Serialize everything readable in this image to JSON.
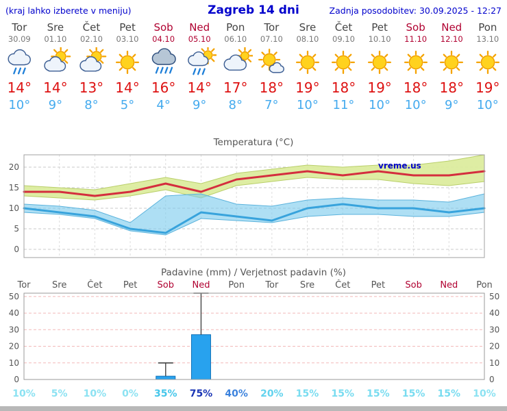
{
  "header": {
    "left_note": "(kraj lahko izberete v meniju)",
    "title": "Zagreb 14 dni",
    "updated": "Zadnja posodobitev: 30.09.2025 - 12:27"
  },
  "colors": {
    "header_blue": "#0000cc",
    "weekend_red": "#b00030",
    "day_gray": "#555555",
    "tmax_red": "#dd1111",
    "tmin_blue": "#44aaee",
    "temp_line_max": "#d42e3e",
    "temp_line_min": "#38a3dc",
    "temp_band_max": "#dcec9e",
    "temp_band_min": "#7cccee",
    "bar_fill": "#28a2ee",
    "bar_stroke": "#1272b8",
    "grid_gray": "#c8c8c8",
    "grid_pink": "#f2b8b8"
  },
  "days": [
    {
      "name": "Tor",
      "date": "30.09",
      "weekend": false,
      "icon": "rain",
      "tmax": "14°",
      "tmin": "10°"
    },
    {
      "name": "Sre",
      "date": "01.10",
      "weekend": false,
      "icon": "partly-cloudy",
      "tmax": "14°",
      "tmin": "9°"
    },
    {
      "name": "Čet",
      "date": "02.10",
      "weekend": false,
      "icon": "partly-cloudy",
      "tmax": "13°",
      "tmin": "8°"
    },
    {
      "name": "Pet",
      "date": "03.10",
      "weekend": false,
      "icon": "sunny",
      "tmax": "14°",
      "tmin": "5°"
    },
    {
      "name": "Sob",
      "date": "04.10",
      "weekend": true,
      "icon": "heavy-rain",
      "tmax": "16°",
      "tmin": "4°"
    },
    {
      "name": "Ned",
      "date": "05.10",
      "weekend": true,
      "icon": "sun-rain",
      "tmax": "14°",
      "tmin": "9°"
    },
    {
      "name": "Pon",
      "date": "06.10",
      "weekend": false,
      "icon": "cloudy",
      "tmax": "17°",
      "tmin": "8°"
    },
    {
      "name": "Tor",
      "date": "07.10",
      "weekend": false,
      "icon": "mostly-sunny",
      "tmax": "18°",
      "tmin": "7°"
    },
    {
      "name": "Sre",
      "date": "08.10",
      "weekend": false,
      "icon": "sunny",
      "tmax": "19°",
      "tmin": "10°"
    },
    {
      "name": "Čet",
      "date": "09.10",
      "weekend": false,
      "icon": "sunny",
      "tmax": "18°",
      "tmin": "11°"
    },
    {
      "name": "Pet",
      "date": "10.10",
      "weekend": false,
      "icon": "sunny",
      "tmax": "19°",
      "tmin": "10°"
    },
    {
      "name": "Sob",
      "date": "11.10",
      "weekend": true,
      "icon": "sunny",
      "tmax": "18°",
      "tmin": "10°"
    },
    {
      "name": "Ned",
      "date": "12.10",
      "weekend": true,
      "icon": "sunny",
      "tmax": "18°",
      "tmin": "9°"
    },
    {
      "name": "Pon",
      "date": "13.10",
      "weekend": false,
      "icon": "sunny",
      "tmax": "19°",
      "tmin": "10°"
    }
  ],
  "chart_data": [
    {
      "type": "line",
      "title": "Temperatura (°C)",
      "watermark": "vreme.us",
      "categories": [
        "Tor 30.09",
        "Sre 01.10",
        "Čet 02.10",
        "Pet 03.10",
        "Sob 04.10",
        "Ned 05.10",
        "Pon 06.10",
        "Tor 07.10",
        "Sre 08.10",
        "Čet 09.10",
        "Pet 10.10",
        "Sob 11.10",
        "Ned 12.10",
        "Pon 13.10"
      ],
      "yticks": [
        0,
        5,
        10,
        15,
        20
      ],
      "ylim": [
        -2,
        23
      ],
      "grid": true,
      "legend_position": "none",
      "series": [
        {
          "name": "tmax",
          "color": "#d42e3e",
          "values": [
            14,
            14,
            13,
            14,
            16,
            14,
            17,
            18,
            19,
            18,
            19,
            18,
            18,
            19
          ]
        },
        {
          "name": "tmin",
          "color": "#38a3dc",
          "values": [
            10,
            9,
            8,
            5,
            4,
            9,
            8,
            7,
            10,
            11,
            10,
            10,
            9,
            10
          ]
        },
        {
          "name": "tmax_range_hi",
          "values": [
            15.5,
            15,
            14.5,
            16,
            17.5,
            16,
            18.5,
            19.5,
            20.5,
            20,
            20.5,
            20.5,
            21.5,
            23
          ]
        },
        {
          "name": "tmax_range_lo",
          "values": [
            13,
            12.5,
            12,
            13,
            14.5,
            12.5,
            15.5,
            16.5,
            17.5,
            17,
            17,
            16,
            15.5,
            16.5
          ]
        },
        {
          "name": "tmin_range_hi",
          "values": [
            11,
            10.5,
            9.5,
            6.5,
            13,
            13.5,
            11,
            10.5,
            12,
            12.5,
            12,
            12,
            11.5,
            13.5
          ]
        },
        {
          "name": "tmin_range_lo",
          "values": [
            9,
            8.5,
            7.5,
            4.5,
            3.5,
            7.5,
            7,
            6.5,
            8,
            8.5,
            8.5,
            8,
            8,
            9
          ]
        }
      ]
    },
    {
      "type": "bar",
      "title": "Padavine (mm) / Verjetnost padavin (%)",
      "categories": [
        "Tor",
        "Sre",
        "Čet",
        "Pet",
        "Sob",
        "Ned",
        "Pon",
        "Tor",
        "Sre",
        "Čet",
        "Pet",
        "Sob",
        "Ned",
        "Pon"
      ],
      "weekend": [
        false,
        false,
        false,
        false,
        true,
        true,
        false,
        false,
        false,
        false,
        false,
        true,
        true,
        false
      ],
      "values": [
        0,
        0,
        0,
        0,
        2,
        27,
        0,
        0,
        0,
        0,
        0,
        0,
        0,
        0
      ],
      "whisker_max": [
        0,
        0,
        0,
        0,
        10,
        52,
        0,
        0,
        0,
        0,
        0,
        0,
        0,
        0
      ],
      "yticks": [
        0,
        10,
        20,
        30,
        40,
        50
      ],
      "ylim": [
        0,
        52
      ],
      "grid": true,
      "probabilities": [
        {
          "label": "10%",
          "color": "#8ce2f2"
        },
        {
          "label": "5%",
          "color": "#8ce2f2"
        },
        {
          "label": "10%",
          "color": "#8ce2f2"
        },
        {
          "label": "0%",
          "color": "#8ce2f2"
        },
        {
          "label": "35%",
          "color": "#45c6ea"
        },
        {
          "label": "75%",
          "color": "#1a35b5"
        },
        {
          "label": "40%",
          "color": "#3b82dd"
        },
        {
          "label": "20%",
          "color": "#63d3ee"
        },
        {
          "label": "15%",
          "color": "#79dcf0"
        },
        {
          "label": "15%",
          "color": "#79dcf0"
        },
        {
          "label": "15%",
          "color": "#79dcf0"
        },
        {
          "label": "15%",
          "color": "#79dcf0"
        },
        {
          "label": "15%",
          "color": "#79dcf0"
        },
        {
          "label": "10%",
          "color": "#8ce2f2"
        }
      ]
    }
  ]
}
